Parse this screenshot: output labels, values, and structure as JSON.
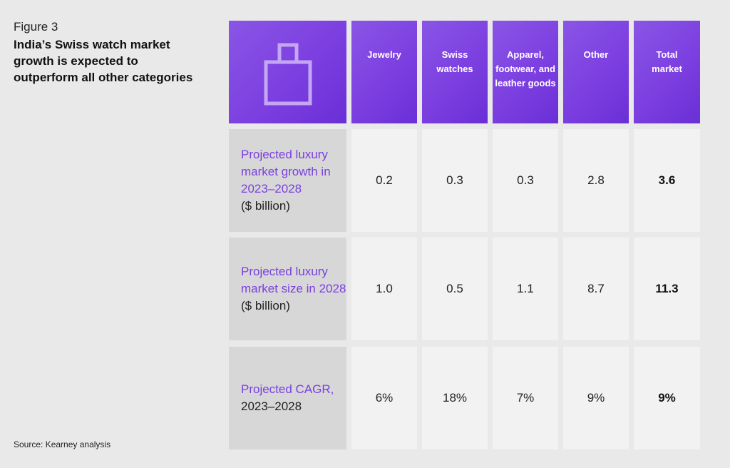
{
  "figure_label": "Figure 3",
  "title": "India’s Swiss watch market growth is expected to outperform all other categories",
  "source": "Source: Kearney analysis",
  "icon": "shopping-bag-icon",
  "colors": {
    "header": "#7c3fe0",
    "accent_text": "#7b3fe0",
    "label_bg": "#d7d7d7",
    "cell_bg": "#f2f2f2"
  },
  "chart_data": {
    "type": "table",
    "title": "India’s Swiss watch market growth is expected to outperform all other categories",
    "columns": [
      "Jewelry",
      "Swiss watches",
      "Apparel, footwear, and leather goods",
      "Other",
      "Total market"
    ],
    "rows": [
      {
        "label": "Projected luxury market growth in 2023–2028",
        "unit": "($ billion)",
        "values": [
          "0.2",
          "0.3",
          "0.3",
          "2.8",
          "3.6"
        ]
      },
      {
        "label": "Projected luxury market size in 2028",
        "unit": "($ billion)",
        "values": [
          "1.0",
          "0.5",
          "1.1",
          "8.7",
          "11.3"
        ]
      },
      {
        "label": "Projected CAGR,",
        "unit": "2023–2028",
        "values": [
          "6%",
          "18%",
          "7%",
          "9%",
          "9%"
        ]
      }
    ]
  }
}
